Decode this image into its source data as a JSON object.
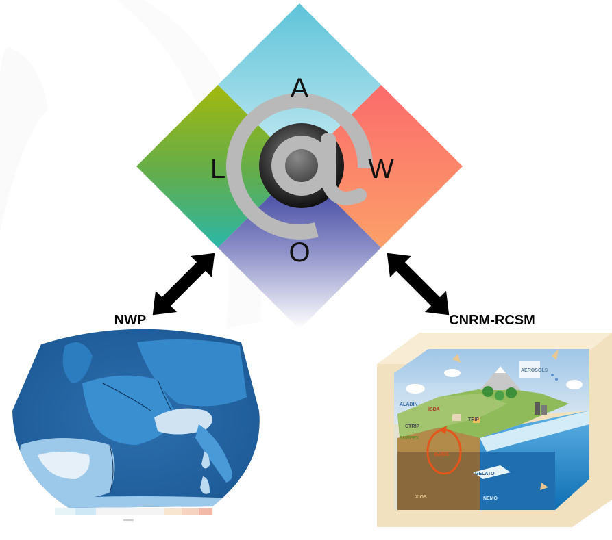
{
  "diamond": {
    "top_label": "A",
    "left_label": "L",
    "right_label": "W",
    "bottom_label": "O",
    "center_symbol": "@"
  },
  "left_panel": {
    "caption": "NWP"
  },
  "right_panel": {
    "caption": "CNRM-RCSM",
    "components": {
      "atmosphere": "ALADIN",
      "surface": "ISBA",
      "ctrip": "CTRIP",
      "surfex": "SURFEX",
      "coupler": "OASIS",
      "sea_ice": "GELATO",
      "ocean": "NEMO",
      "io": "XIOS",
      "trip": "TRIP",
      "aerosols": "AEROSOLS"
    }
  },
  "colors": {
    "atmosphere": "#a6dced",
    "land": "#6aa83a",
    "waves": "#fa7a6a",
    "ocean": "#3a3f9a",
    "sea": "#2a78b8"
  }
}
